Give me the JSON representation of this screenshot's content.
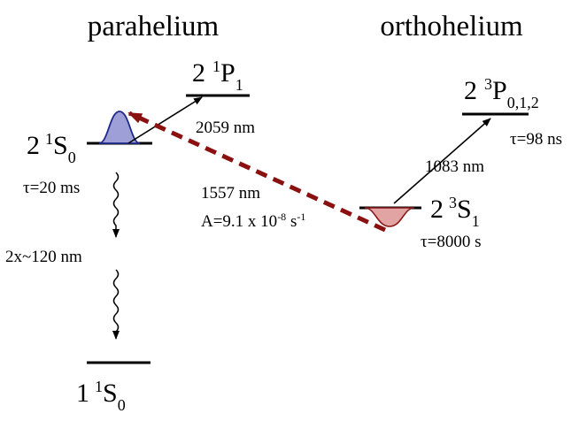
{
  "headings": {
    "left": "parahelium",
    "right": "orthohelium"
  },
  "levels": {
    "s21": {
      "n": "2",
      "mult": "1",
      "L": "S",
      "J": "0"
    },
    "p21": {
      "n": "2",
      "mult": "1",
      "L": "P",
      "J": "1"
    },
    "s11": {
      "n": "1",
      "mult": "1",
      "L": "S",
      "J": "0"
    },
    "s23": {
      "n": "2",
      "mult": "3",
      "L": "S",
      "J": "1"
    },
    "p23": {
      "n": "2",
      "mult": "3",
      "L": "P",
      "J": "0,1,2"
    }
  },
  "labels": {
    "tau_s21": "τ=20 ms",
    "tau_s23": "τ=8000 s",
    "tau_p23": "τ=98 ns",
    "wl_2059": "2059 nm",
    "wl_1083": "1083 nm",
    "wl_1557": "1557 nm",
    "wl_2photon": "2x~120 nm",
    "rate_prefix": "A=9.1 x 10",
    "rate_exp": "-8",
    "rate_unit": " s",
    "rate_unit_exp": "-1"
  },
  "colors": {
    "line": "#000000",
    "dashed_arrow": "#8b1010",
    "blue_fill": "#9f9fd8",
    "blue_stroke": "#1f2a8c",
    "pink_fill": "#e2a3a3",
    "pink_stroke": "#8b1a1a"
  }
}
